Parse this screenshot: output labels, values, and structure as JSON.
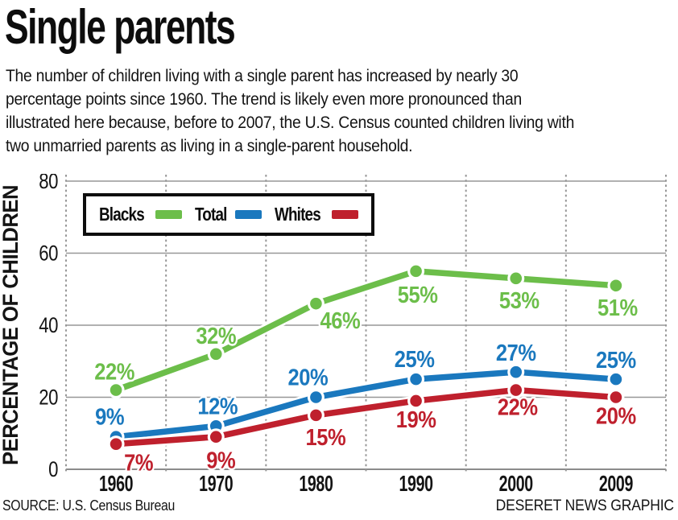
{
  "header": {
    "title": "Single parents",
    "intro_lines": [
      "The number of children living with a single parent has increased by nearly 30",
      "percentage points since 1960. The trend is likely even more pronounced than",
      "illustrated here because, before to 2007, the U.S. Census counted children living with",
      "two unmarried parents as living in a single-parent household."
    ]
  },
  "chart_data": {
    "type": "line",
    "categories": [
      "1960",
      "1970",
      "1980",
      "1990",
      "2000",
      "2009"
    ],
    "series": [
      {
        "name": "Blacks",
        "color": "#6cbe4a",
        "values": [
          22,
          32,
          46,
          55,
          53,
          51
        ]
      },
      {
        "name": "Total",
        "color": "#1a78be",
        "values": [
          9,
          12,
          20,
          25,
          27,
          25
        ]
      },
      {
        "name": "Whites",
        "color": "#bf202d",
        "values": [
          7,
          9,
          15,
          19,
          22,
          20
        ]
      }
    ],
    "ylabel": "PERCENTAGE OF CHILDREN",
    "ylim": [
      0,
      80
    ],
    "yticks": [
      0,
      20,
      40,
      60,
      80
    ],
    "value_label_suffix": "%",
    "legend_position": "top-left",
    "grid": {
      "horizontal": "solid",
      "vertical": "dotted"
    },
    "grid_color": "#979797"
  },
  "footer": {
    "source": "SOURCE: U.S. Census Bureau",
    "credit": "DESERET NEWS GRAPHIC"
  }
}
